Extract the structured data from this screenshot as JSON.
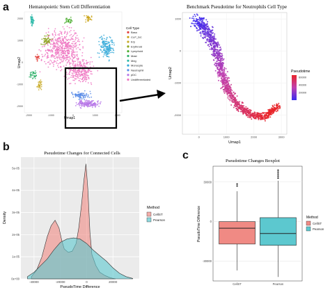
{
  "panels": {
    "a": "a",
    "b": "b",
    "c": "c"
  },
  "chart_data": [
    {
      "id": "umap-cell-types",
      "type": "scatter",
      "title": "Hematopoietic Stem Cell Differentiation",
      "xlabel": "Umap1",
      "ylabel": "Umap2",
      "xlim": [
        -2200,
        2200
      ],
      "ylim": [
        -2300,
        2300
      ],
      "xticks": [
        "-2000",
        "-1000",
        "0",
        "1000",
        "2000"
      ],
      "yticks": [
        "2000",
        "1000",
        "0",
        "-1000",
        "-2000"
      ],
      "legend_title": "Cell Type",
      "legend": [
        {
          "name": "Baso",
          "color": "#e3443f"
        },
        {
          "name": "CLP_DC",
          "color": "#c9a214"
        },
        {
          "name": "Ery",
          "color": "#c9ab2a"
        },
        {
          "name": "Erythroid",
          "color": "#8ca51c"
        },
        {
          "name": "Lymphoid",
          "color": "#49ab2c"
        },
        {
          "name": "Mast",
          "color": "#35b36e"
        },
        {
          "name": "Meg",
          "color": "#2cb8a8"
        },
        {
          "name": "Monocyte",
          "color": "#34a9d8"
        },
        {
          "name": "Neutrophil",
          "color": "#5b8de8"
        },
        {
          "name": "pDC",
          "color": "#b777e8"
        },
        {
          "name": "Undifferentiated",
          "color": "#ee77c2"
        }
      ],
      "highlight_box_region": "lower-right (Neutrophil branch)"
    },
    {
      "id": "umap-pseudotime",
      "type": "scatter",
      "title": "Benchmark Pseudotime for Neutrophils Cell Type",
      "xlabel": "Umap1",
      "ylabel": "Umap2",
      "xlim": [
        -600,
        3200
      ],
      "ylim": [
        -2600,
        1200
      ],
      "xticks": [
        "0",
        "1000",
        "2000",
        "3000"
      ],
      "yticks": [
        "1000",
        "0",
        "-1000",
        "-2000"
      ],
      "colorbar_title": "Pseudotime",
      "colorbar_ticks": [
        "60000",
        "40000",
        "20000"
      ],
      "colorbar_range": [
        0,
        65000
      ],
      "colors": {
        "low": "#3b2cf0",
        "mid": "#c040b0",
        "high": "#e8262a"
      }
    },
    {
      "id": "density",
      "type": "area",
      "title": "Pseudotime Changes for Connected Cells",
      "xlabel": "PseudoTime Difference",
      "ylabel": "Density",
      "xlim": [
        -50000,
        40000
      ],
      "ylim": [
        0,
        5.5e-05
      ],
      "xticks": [
        "-40000",
        "-20000",
        "0",
        "20000"
      ],
      "yticks": [
        "0e+00",
        "1e-05",
        "2e-05",
        "3e-05",
        "4e-05",
        "5e-05"
      ],
      "legend_title": "Method",
      "series": [
        {
          "name": "CellST",
          "color": "#f08a84",
          "x": [
            -42000,
            -38000,
            -34000,
            -30000,
            -27000,
            -24000,
            -21000,
            -19000,
            -17000,
            -14000,
            -11000,
            -8000,
            -6000,
            -4000,
            -2000,
            -500,
            1000,
            2500,
            4000,
            7000,
            10000,
            14000,
            18000,
            22000
          ],
          "y": [
            1e-06,
            4e-06,
            1e-05,
            1.9e-05,
            2.4e-05,
            2.65e-05,
            2.3e-05,
            1.75e-05,
            1.35e-05,
            1.2e-05,
            1.25e-05,
            1.6e-05,
            2.3e-05,
            3.3e-05,
            4.5e-05,
            5.2e-05,
            4e-05,
            2.1e-05,
            1.1e-05,
            6e-06,
            3e-06,
            1.5e-06,
            5e-07,
            0.0
          ]
        },
        {
          "name": "Pearson",
          "color": "#5cc8cf",
          "x": [
            -45000,
            -40000,
            -35000,
            -30000,
            -25000,
            -20000,
            -15000,
            -10000,
            -5000,
            0,
            5000,
            10000,
            15000,
            20000,
            25000,
            30000,
            35000
          ],
          "y": [
            1e-06,
            3e-06,
            6e-06,
            9e-06,
            1.3e-05,
            1.65e-05,
            1.8e-05,
            1.85e-05,
            1.8e-05,
            1.6e-05,
            1.3e-05,
            1.05e-05,
            8e-06,
            5e-06,
            2.5e-06,
            1e-06,
            2e-07
          ]
        }
      ]
    },
    {
      "id": "boxplot",
      "type": "bar",
      "title": "Pseudotime Changes Boxplot",
      "xlabel": "",
      "ylabel": "PseudoTime Difference",
      "ylim": [
        -45000,
        42000
      ],
      "yticks": [
        "30000",
        "0",
        "-30000"
      ],
      "legend_title": "Method",
      "series": [
        {
          "name": "CellST",
          "color": "#f08a84",
          "min": -37000,
          "q1": -17000,
          "median": -5000,
          "q3": 0,
          "max": 23000,
          "outliers": [
            27000,
            28500
          ]
        },
        {
          "name": "Pearson",
          "color": "#5cc8cf",
          "min": -42000,
          "q1": -18000,
          "median": -9000,
          "q3": 3000,
          "max": 31000,
          "outliers": [
            33000,
            34500,
            36000,
            37500,
            39000
          ]
        }
      ]
    }
  ]
}
